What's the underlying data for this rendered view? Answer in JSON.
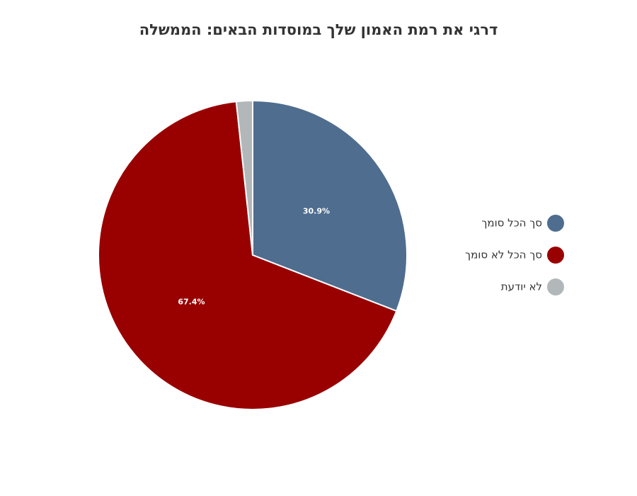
{
  "chart_data": {
    "type": "pie",
    "title": "דרגי את רמת האמון שלך במוסדות הבאים: הממשלה",
    "categories": [
      "סך הכל סומך",
      "סך הכל לא סומך",
      "לא יודעת"
    ],
    "values": [
      30.9,
      67.4,
      1.7
    ],
    "value_labels": [
      "30.9%",
      "67.4%",
      null
    ],
    "colors": [
      "#4f6d8f",
      "#990000",
      "#b2b8b9"
    ],
    "legend": "right"
  }
}
